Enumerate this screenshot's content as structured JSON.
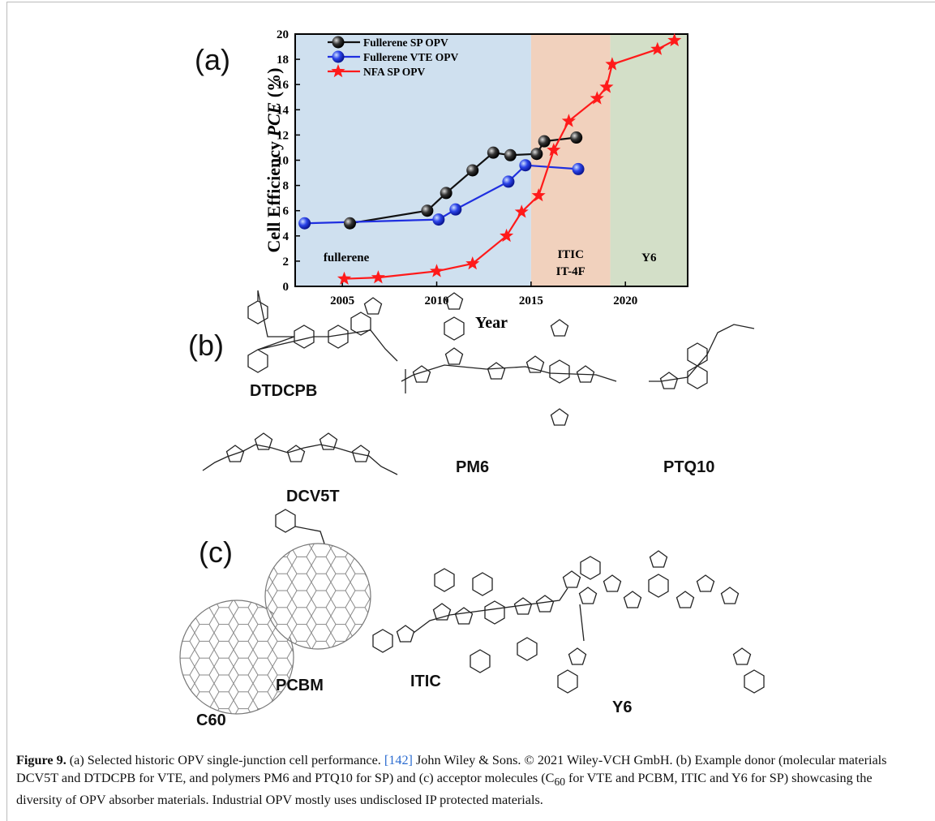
{
  "panels": {
    "a": "(a)",
    "b": "(b)",
    "c": "(c)"
  },
  "molecules": {
    "dtdcpb": "DTDCPB",
    "dcv5t": "DCV5T",
    "pm6": "PM6",
    "ptq10": "PTQ10",
    "c60": "C60",
    "pcbm": "PCBM",
    "itic": "ITIC",
    "y6": "Y6"
  },
  "chart_data": {
    "type": "line",
    "xlabel": "Year",
    "ylabel": [
      "Cell Efficiency ",
      "PCE",
      " (%)"
    ],
    "xlim": [
      2002.5,
      2023.3
    ],
    "ylim": [
      0,
      20
    ],
    "xticks": [
      2005,
      2010,
      2015,
      2020
    ],
    "yticks": [
      0,
      2,
      4,
      6,
      8,
      10,
      12,
      14,
      16,
      18,
      20
    ],
    "legend": "upper left",
    "regions": [
      {
        "label": [
          "fullerene"
        ],
        "start": 2002.5,
        "end": 2015.0,
        "color": "#cfe0ef"
      },
      {
        "label": [
          "ITIC",
          "IT-4F"
        ],
        "start": 2015.0,
        "end": 2019.2,
        "color": "#f1d1bd"
      },
      {
        "label": [
          "Y6"
        ],
        "start": 2019.2,
        "end": 2023.3,
        "color": "#d3dfc8"
      }
    ],
    "series": [
      {
        "name": "Fullerene SP OPV",
        "color": "#111111",
        "marker": "sphere",
        "x": [
          2005.4,
          2009.5,
          2010.5,
          2011.9,
          2013.0,
          2013.9,
          2015.3,
          2015.7,
          2017.4
        ],
        "values": [
          5.0,
          6.0,
          7.4,
          9.2,
          10.6,
          10.4,
          10.5,
          11.5,
          11.8
        ]
      },
      {
        "name": "Fullerene VTE OPV",
        "color": "#1f2fe0",
        "marker": "sphere",
        "x": [
          2003.0,
          2010.1,
          2011.0,
          2013.8,
          2014.7,
          2017.5
        ],
        "values": [
          5.0,
          5.3,
          6.1,
          8.3,
          9.6,
          9.3
        ]
      },
      {
        "name": "NFA SP OPV",
        "color": "#ff1a1a",
        "marker": "star",
        "x": [
          2005.1,
          2006.9,
          2010.0,
          2011.9,
          2013.7,
          2014.5,
          2015.4,
          2016.2,
          2017.0,
          2018.5,
          2019.0,
          2019.3,
          2021.7,
          2022.6
        ],
        "values": [
          0.6,
          0.7,
          1.2,
          1.8,
          4.0,
          5.9,
          7.2,
          10.8,
          13.1,
          14.9,
          15.8,
          17.6,
          18.8,
          19.5
        ]
      }
    ]
  },
  "caption": {
    "label": "Figure 9.",
    "text_1": " (a) Selected historic OPV single-junction cell performance. ",
    "ref": "[142]",
    "text_2": " John Wiley & Sons. © 2021 Wiley-VCH GmbH. (b) Example donor (molecular materials DCV5T and DTDCPB for VTE, and polymers PM6 and PTQ10 for SP) and (c) acceptor molecules (C",
    "subscript": "60",
    "text_3": " for VTE and PCBM, ITIC and Y6 for SP) showcasing the diversity of OPV absorber materials. Industrial OPV mostly uses undisclosed IP protected materials."
  }
}
